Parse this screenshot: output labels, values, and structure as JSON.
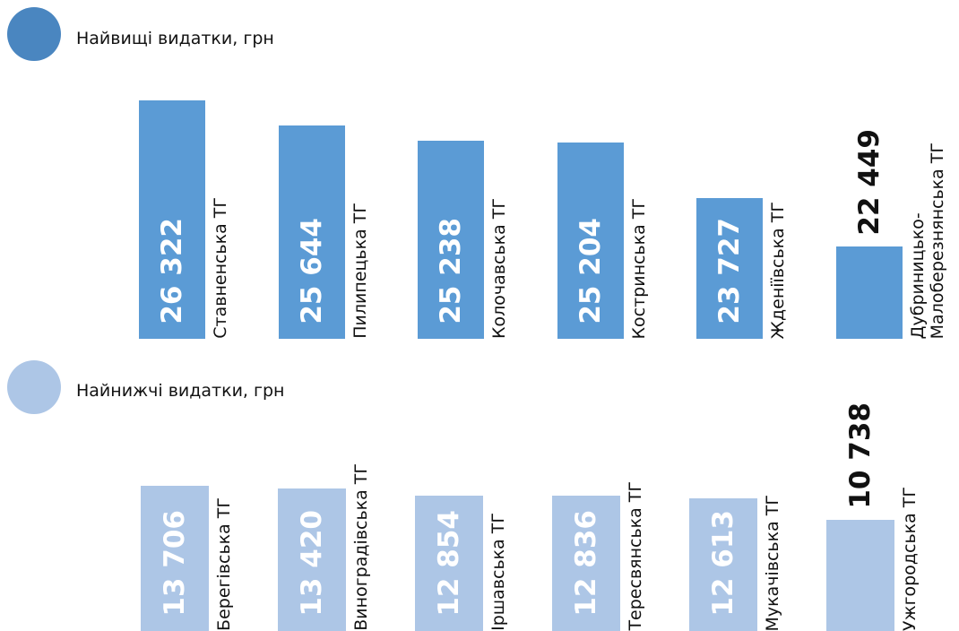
{
  "chart_data": [
    {
      "type": "bar",
      "title": "Найвищі видатки, грн",
      "categories": [
        "Ставненська ТГ",
        "Пилипецька ТГ",
        "Колочавська ТГ",
        "Костринська ТГ",
        "Жденіївська ТГ",
        "Дубриницько-\nМалоберезнянська ТГ"
      ],
      "values": [
        26322,
        25644,
        25238,
        25204,
        23727,
        22449
      ],
      "value_labels": [
        "26 322",
        "25 644",
        "25 238",
        "25 204",
        "23 727",
        "22 449"
      ],
      "color": "#5b9bd5",
      "ylim": [
        20000,
        26600
      ]
    },
    {
      "type": "bar",
      "title": "Найнижчі видатки, грн",
      "categories": [
        "Берегівська ТГ",
        "Виноградівська ТГ",
        "Іршавська ТГ",
        "Тересвянська ТГ",
        "Мукачівська ТГ",
        "Ужгородська ТГ"
      ],
      "values": [
        13706,
        13420,
        12854,
        12836,
        12613,
        10738
      ],
      "value_labels": [
        "13 706",
        "13 420",
        "12 854",
        "12 836",
        "12 613",
        "10 738"
      ],
      "color": "#adc6e6",
      "ylim": [
        1000,
        14000
      ]
    }
  ]
}
